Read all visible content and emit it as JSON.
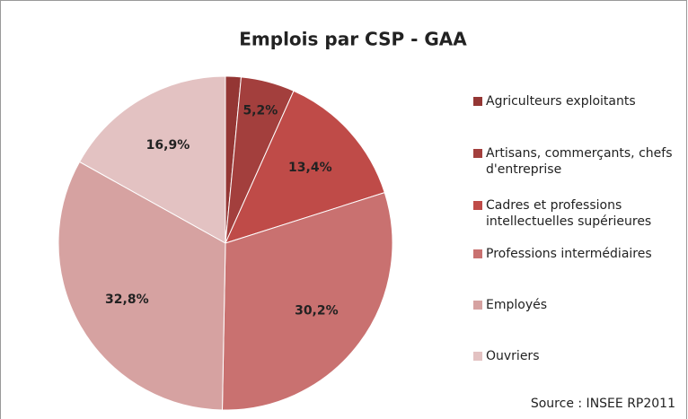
{
  "chart_data": {
    "type": "pie",
    "title": "Emplois par CSP - GAA",
    "categories": [
      "Agriculteurs exploitants",
      "Artisans, commerçants, chefs d'entreprise",
      "Cadres et professions intellectuelles supérieures",
      "Professions intermédiaires",
      "Employés",
      "Ouvriers"
    ],
    "values": [
      1.5,
      5.2,
      13.4,
      30.2,
      32.8,
      16.9
    ],
    "value_labels": [
      null,
      "5,2%",
      "13,4%",
      "30,2%",
      "32,8%",
      "16,9%"
    ],
    "colors": [
      "#943634",
      "#a33f3d",
      "#bf4b48",
      "#c97170",
      "#d6a2a1",
      "#e3c2c2"
    ],
    "legend": "right",
    "source": "Source : INSEE RP2011"
  }
}
